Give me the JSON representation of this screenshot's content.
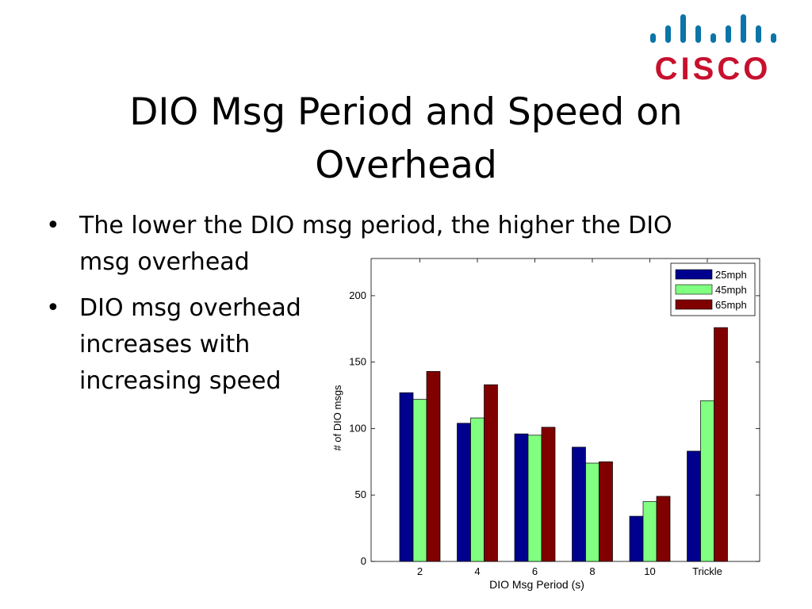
{
  "slide": {
    "title": "DIO Msg Period and Speed on Overhead",
    "bullets": [
      "The lower the DIO msg period, the higher the DIO msg overhead",
      "DIO msg overhead increases with increasing speed"
    ],
    "bullet_glyph": "•"
  },
  "logo": {
    "text": "CISCO",
    "color": "#c8102e",
    "bars_color": "#0b74a8"
  },
  "chart_data": {
    "type": "bar",
    "categories": [
      "2",
      "4",
      "6",
      "8",
      "10",
      "Trickle"
    ],
    "series": [
      {
        "name": "25mph",
        "values": [
          127,
          104,
          96,
          86,
          34,
          83
        ],
        "color": "#00008f"
      },
      {
        "name": "45mph",
        "values": [
          122,
          108,
          95,
          74,
          45,
          121
        ],
        "color": "#80ff80"
      },
      {
        "name": "65mph",
        "values": [
          143,
          133,
          101,
          75,
          49,
          176
        ],
        "color": "#800000"
      }
    ],
    "xlabel": "DIO Msg Period (s)",
    "ylabel": "# of DIO msgs",
    "ylim": [
      0,
      200
    ],
    "yticks": [
      0,
      50,
      100,
      150,
      200
    ],
    "legend_position": "top-right",
    "grid": false
  }
}
